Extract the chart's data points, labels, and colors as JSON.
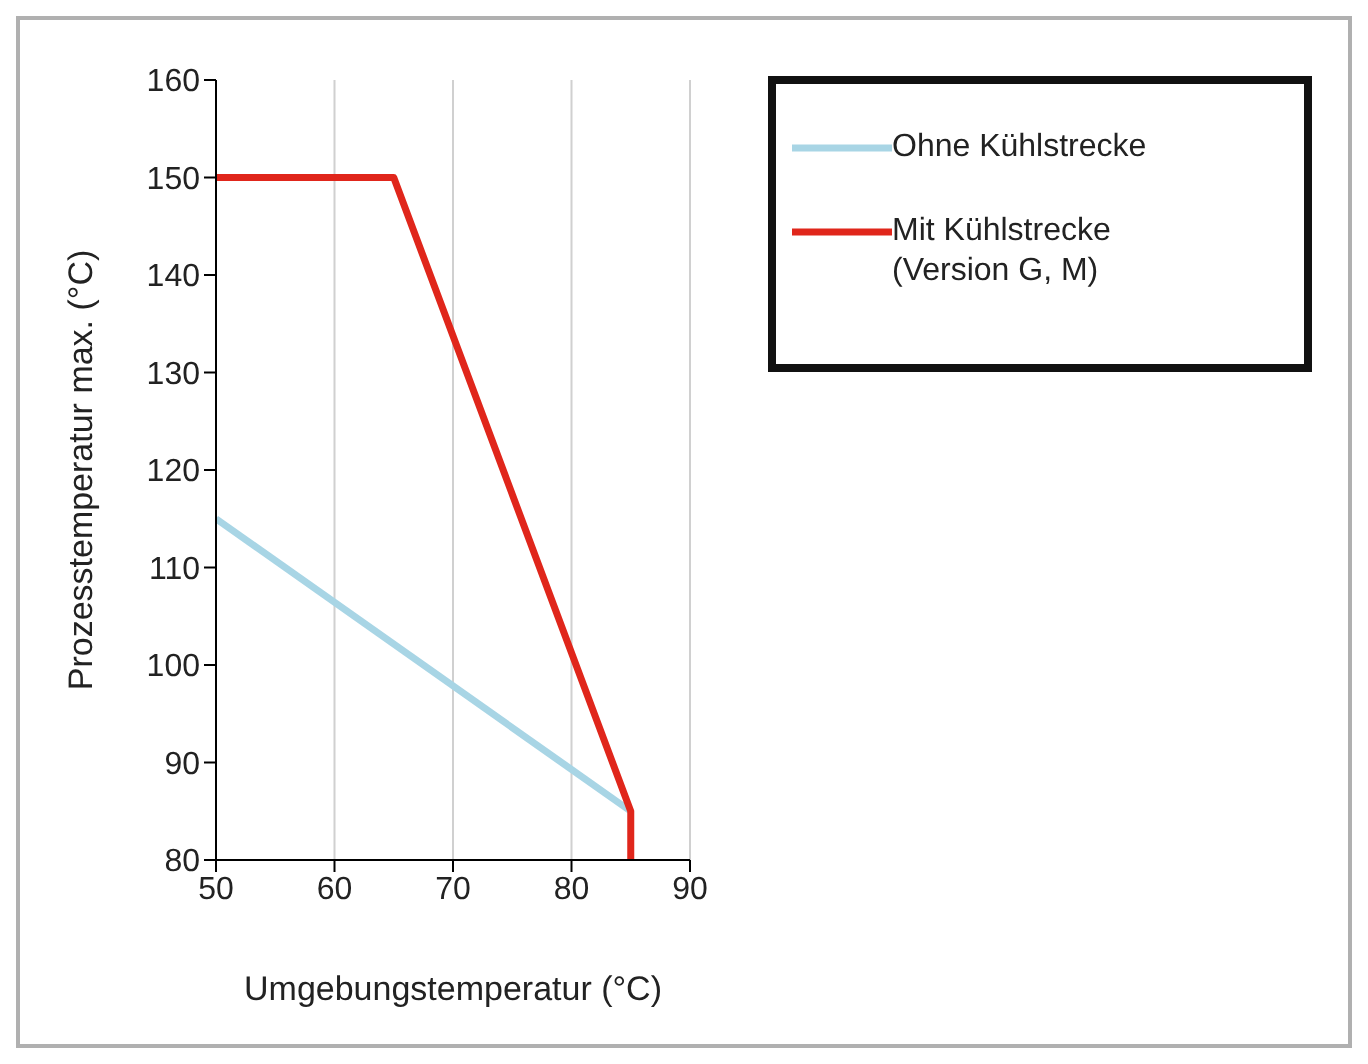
{
  "chart_data": {
    "type": "line",
    "xlabel": "Umgebungstemperatur (°C)",
    "ylabel": "Prozesstemperatur max. (°C)",
    "series": [
      {
        "name": "Ohne Kühlstrecke",
        "color": "#a8d5e5",
        "x": [
          50,
          85
        ],
        "values": [
          115,
          85
        ]
      },
      {
        "name": "Mit Kühlstrecke (Version G, M)",
        "color": "#e0261b",
        "x": [
          50,
          65,
          85,
          85
        ],
        "values": [
          150,
          150,
          85,
          80
        ]
      }
    ],
    "xlim": [
      50,
      90
    ],
    "xticks": [
      50,
      60,
      70,
      80,
      90
    ],
    "ylim": [
      80,
      160
    ],
    "yticks": [
      80,
      90,
      100,
      110,
      120,
      130,
      140,
      150,
      160
    ],
    "grid": "x",
    "legend": "top right",
    "marker": "none",
    "line_style": "solid"
  }
}
